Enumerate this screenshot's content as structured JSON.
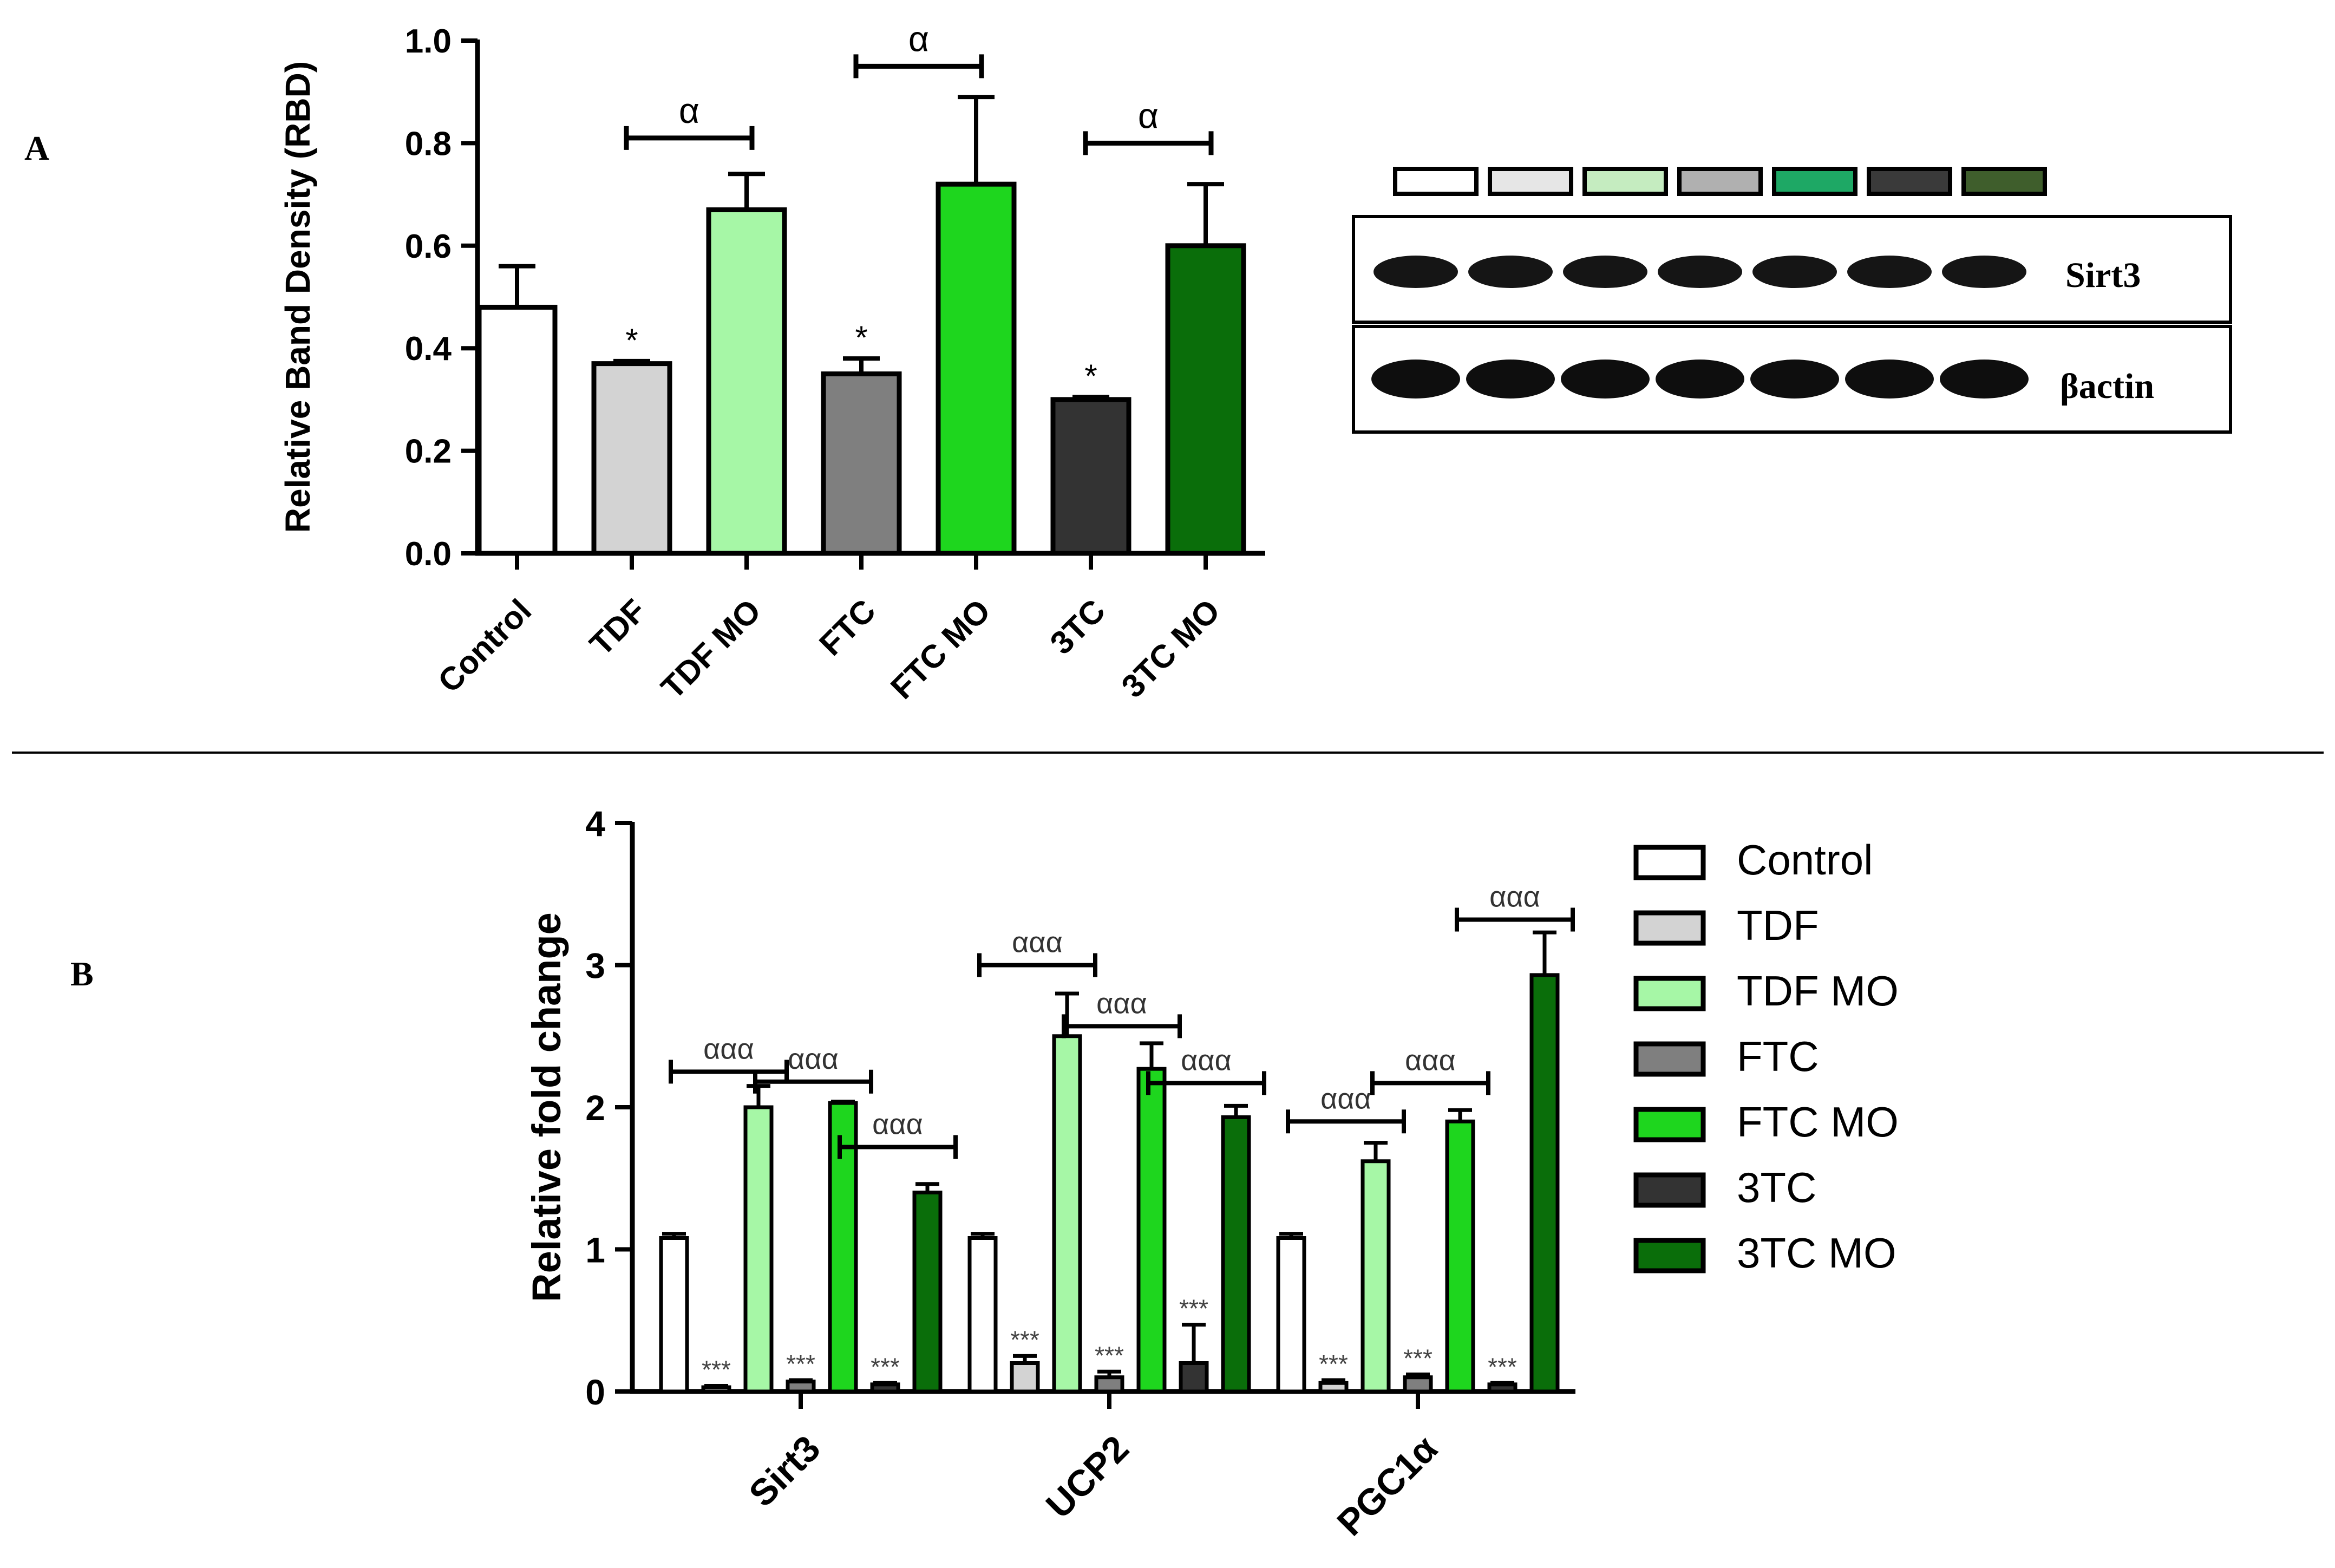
{
  "panels": {
    "a": {
      "label": "A"
    },
    "b": {
      "label": "B"
    }
  },
  "colors": {
    "Control": "#ffffff",
    "TDF": "#d3d3d3",
    "TDF MO": "#a6f7a6",
    "FTC": "#7f7f7f",
    "FTC MO": "#1ed61e",
    "3TC": "#333333",
    "3TC MO": "#0a6e0a"
  },
  "chart_data": [
    {
      "type": "bar",
      "id": "panel-a",
      "categories": [
        "Control",
        "TDF",
        "TDF MO",
        "FTC",
        "FTC MO",
        "3TC",
        "3TC MO"
      ],
      "values": [
        0.48,
        0.37,
        0.67,
        0.35,
        0.72,
        0.3,
        0.6
      ],
      "errors": [
        0.08,
        0.005,
        0.07,
        0.03,
        0.17,
        0.005,
        0.12
      ],
      "ylabel": "Relative Band Density (RBD)",
      "ylim": [
        0,
        1.0
      ],
      "yticks": [
        0.0,
        0.2,
        0.4,
        0.6,
        0.8,
        1.0
      ],
      "ytick_labels": [
        "0.0",
        "0.2",
        "0.4",
        "0.6",
        "0.8",
        "1.0"
      ],
      "stars": [
        {
          "bar": "TDF",
          "text": "*"
        },
        {
          "bar": "FTC",
          "text": "*"
        },
        {
          "bar": "3TC",
          "text": "*"
        }
      ],
      "brackets": [
        {
          "from": "TDF",
          "to": "TDF MO",
          "level": 0.81,
          "text": "α"
        },
        {
          "from": "FTC",
          "to": "FTC MO",
          "level": 0.95,
          "text": "α"
        },
        {
          "from": "3TC",
          "to": "3TC MO",
          "level": 0.8,
          "text": "α"
        }
      ]
    },
    {
      "type": "bar",
      "id": "panel-b",
      "categories": [
        "Sirt3",
        "UCP2",
        "PGC1α"
      ],
      "series": [
        {
          "name": "Control",
          "values": [
            1.08,
            1.08,
            1.08
          ],
          "errors": [
            0.03,
            0.03,
            0.03
          ]
        },
        {
          "name": "TDF",
          "values": [
            0.03,
            0.2,
            0.06
          ],
          "errors": [
            0.01,
            0.05,
            0.02
          ]
        },
        {
          "name": "TDF MO",
          "values": [
            2.0,
            2.5,
            1.62
          ],
          "errors": [
            0.15,
            0.3,
            0.13
          ]
        },
        {
          "name": "FTC",
          "values": [
            0.07,
            0.1,
            0.1
          ],
          "errors": [
            0.01,
            0.04,
            0.02
          ]
        },
        {
          "name": "FTC MO",
          "values": [
            2.03,
            2.27,
            1.9
          ],
          "errors": [
            0.01,
            0.18,
            0.08
          ]
        },
        {
          "name": "3TC",
          "values": [
            0.05,
            0.2,
            0.05
          ],
          "errors": [
            0.01,
            0.27,
            0.01
          ]
        },
        {
          "name": "3TC MO",
          "values": [
            1.4,
            1.93,
            2.93
          ],
          "errors": [
            0.06,
            0.08,
            0.3
          ]
        }
      ],
      "ylabel": "Relative fold change",
      "ylim": [
        0,
        4
      ],
      "yticks": [
        0,
        1,
        2,
        3,
        4
      ],
      "ytick_labels": [
        "0",
        "1",
        "2",
        "3",
        "4"
      ],
      "stars": [
        {
          "group": "Sirt3",
          "series": "TDF",
          "text": "***"
        },
        {
          "group": "Sirt3",
          "series": "FTC",
          "text": "***"
        },
        {
          "group": "Sirt3",
          "series": "3TC",
          "text": "***"
        },
        {
          "group": "UCP2",
          "series": "TDF",
          "text": "***"
        },
        {
          "group": "UCP2",
          "series": "FTC",
          "text": "***"
        },
        {
          "group": "UCP2",
          "series": "3TC",
          "text": "***"
        },
        {
          "group": "PGC1α",
          "series": "TDF",
          "text": "***"
        },
        {
          "group": "PGC1α",
          "series": "FTC",
          "text": "***"
        },
        {
          "group": "PGC1α",
          "series": "3TC",
          "text": "***"
        }
      ],
      "brackets": [
        {
          "group": "Sirt3",
          "from": "Control",
          "to": "TDF MO",
          "level": 2.25,
          "text": "ααα"
        },
        {
          "group": "Sirt3",
          "from": "TDF MO",
          "to": "FTC MO",
          "level": 2.18,
          "text": "ααα"
        },
        {
          "group": "Sirt3",
          "from": "FTC MO",
          "to": "3TC MO",
          "level": 1.72,
          "text": "ααα"
        },
        {
          "group": "UCP2",
          "from": "Control",
          "to": "TDF MO",
          "level": 3.0,
          "text": "ααα"
        },
        {
          "group": "UCP2",
          "from": "TDF MO",
          "to": "FTC MO",
          "level": 2.57,
          "text": "ααα"
        },
        {
          "group": "UCP2",
          "from": "FTC MO",
          "to": "3TC MO",
          "level": 2.17,
          "text": "ααα"
        },
        {
          "group": "PGC1α",
          "from": "Control",
          "to": "TDF MO",
          "level": 1.9,
          "text": "ααα"
        },
        {
          "group": "PGC1α",
          "from": "TDF MO",
          "to": "FTC MO",
          "level": 2.17,
          "text": "ααα"
        },
        {
          "group": "PGC1α",
          "from": "FTC MO",
          "to": "3TC MO",
          "level": 3.32,
          "text": "ααα"
        }
      ],
      "legend": {
        "position": "right",
        "entries": [
          "Control",
          "TDF",
          "TDF MO",
          "FTC",
          "FTC MO",
          "3TC",
          "3TC MO"
        ]
      }
    }
  ],
  "blot": {
    "swatch_colors": [
      "#ffffff",
      "#e6e6e6",
      "#c5ecc0",
      "#b0b0b0",
      "#1ea865",
      "#3a3a3a",
      "#3f5e2c"
    ],
    "rows": [
      {
        "label": "Sirt3"
      },
      {
        "label": "βactin"
      }
    ]
  }
}
